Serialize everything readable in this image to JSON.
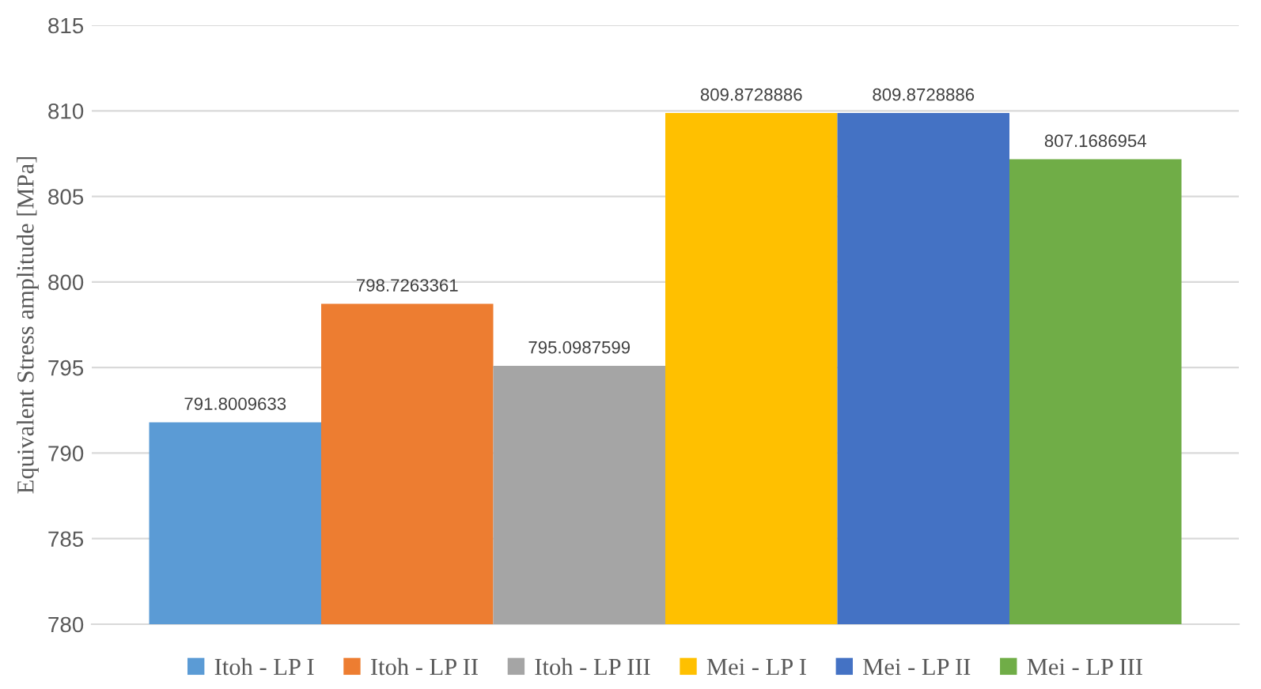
{
  "chart_data": {
    "type": "bar",
    "ylabel": "Equivalent Stress amplitude [MPa]",
    "categories": [
      null
    ],
    "series": [
      {
        "name": "Itoh - LP I",
        "color": "#5b9bd5",
        "values": [
          791.8009633
        ]
      },
      {
        "name": "Itoh - LP II",
        "color": "#ed7d31",
        "values": [
          798.7263361
        ]
      },
      {
        "name": "Itoh - LP III",
        "color": "#a5a5a5",
        "values": [
          795.0987599
        ]
      },
      {
        "name": "Mei - LP I",
        "color": "#ffc000",
        "values": [
          809.8728886
        ]
      },
      {
        "name": "Mei - LP II",
        "color": "#4472c4",
        "values": [
          809.8728886
        ]
      },
      {
        "name": "Mei - LP III",
        "color": "#70ad47",
        "values": [
          807.1686954
        ]
      }
    ],
    "ylim": [
      780,
      815
    ],
    "yticks": [
      780,
      785,
      790,
      795,
      800,
      805,
      810,
      815
    ],
    "grid": "y",
    "legend": "bottom",
    "data_labels": true
  }
}
